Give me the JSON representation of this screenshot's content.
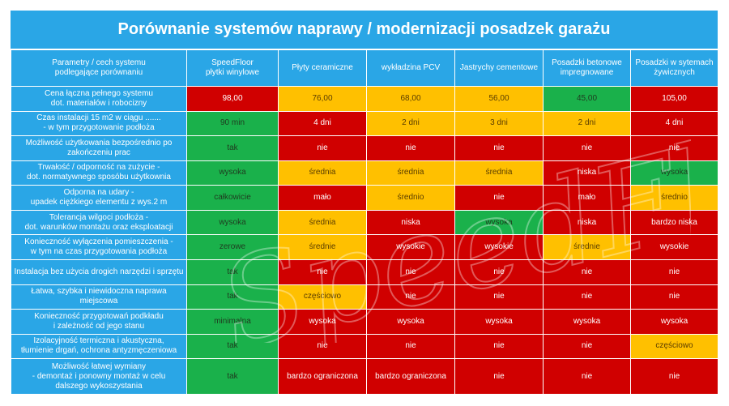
{
  "title": "Porównanie systemów naprawy / modernizacji posadzek garażu",
  "header": {
    "param_label": "Parametry / cech systemu\npodlegające porównaniu",
    "columns": [
      "SpeedFloor\npłytki winylowe",
      "Płyty ceramiczne",
      "wykładzina PCV",
      "Jastrychy cementowe",
      "Posadzki betonowe\nimpregnowane",
      "Posadzki w sytemach\nżywicznych"
    ]
  },
  "rows": [
    {
      "param": "Cena łączna pełnego systemu\ndot. materiałów i robocizny",
      "cells": [
        {
          "v": "98,00",
          "c": "R"
        },
        {
          "v": "76,00",
          "c": "Y"
        },
        {
          "v": "68,00",
          "c": "Y"
        },
        {
          "v": "56,00",
          "c": "Y"
        },
        {
          "v": "45,00",
          "c": "G"
        },
        {
          "v": "105,00",
          "c": "R"
        }
      ]
    },
    {
      "param": "Czas instalacji 15 m2 w ciągu  .......\n- w tym przygotowanie podłoża",
      "cells": [
        {
          "v": "90 min",
          "c": "G"
        },
        {
          "v": "4  dni",
          "c": "R"
        },
        {
          "v": "2 dni",
          "c": "Y"
        },
        {
          "v": "3 dni",
          "c": "Y"
        },
        {
          "v": "2 dni",
          "c": "Y"
        },
        {
          "v": "4  dni",
          "c": "R"
        }
      ]
    },
    {
      "param": "Możliwość użytkowania bezpośrednio po\nzakończeniu prac",
      "cells": [
        {
          "v": "tak",
          "c": "G"
        },
        {
          "v": "nie",
          "c": "R"
        },
        {
          "v": "nie",
          "c": "R"
        },
        {
          "v": "nie",
          "c": "R"
        },
        {
          "v": "nie",
          "c": "R"
        },
        {
          "v": "nie",
          "c": "R"
        }
      ]
    },
    {
      "param": "Trwałość / odporność  na zużycie -\ndot. normatywnego sposóbu użytkownia",
      "cells": [
        {
          "v": "wysoka",
          "c": "G"
        },
        {
          "v": "średnia",
          "c": "Y"
        },
        {
          "v": "średnia",
          "c": "Y"
        },
        {
          "v": "średnia",
          "c": "Y"
        },
        {
          "v": "niska",
          "c": "R"
        },
        {
          "v": "wysoka",
          "c": "G"
        }
      ]
    },
    {
      "param": "Odporna na udary  -\nupadek ciężkiego elementu z wys.2 m",
      "cells": [
        {
          "v": "całkowicie",
          "c": "G"
        },
        {
          "v": "mało",
          "c": "R"
        },
        {
          "v": "średnio",
          "c": "Y"
        },
        {
          "v": "nie",
          "c": "R"
        },
        {
          "v": "mało",
          "c": "R"
        },
        {
          "v": "średnio",
          "c": "Y"
        }
      ]
    },
    {
      "param": "Tolerancja wilgoci podłoża  -\ndot. warunków montażu oraz eksploatacji",
      "cells": [
        {
          "v": "wysoka",
          "c": "G"
        },
        {
          "v": "średnia",
          "c": "Y"
        },
        {
          "v": "niska",
          "c": "R"
        },
        {
          "v": "wysoka",
          "c": "G"
        },
        {
          "v": "niska",
          "c": "R"
        },
        {
          "v": "bardzo niska",
          "c": "R"
        }
      ]
    },
    {
      "param": "Konieczność wyłączenia pomieszczenia  -\nw tym na czas  przygotowania podłoża",
      "cells": [
        {
          "v": "zerowe",
          "c": "G"
        },
        {
          "v": "średnie",
          "c": "Y"
        },
        {
          "v": "wysokie",
          "c": "R"
        },
        {
          "v": "wysokie",
          "c": "R"
        },
        {
          "v": "średnie",
          "c": "Y"
        },
        {
          "v": "wysokie",
          "c": "R"
        }
      ]
    },
    {
      "param": "Instalacja bez użycia drogich narzędzi i sprzętu",
      "cells": [
        {
          "v": "tak",
          "c": "G"
        },
        {
          "v": "nie",
          "c": "R"
        },
        {
          "v": "nie",
          "c": "R"
        },
        {
          "v": "nie",
          "c": "R"
        },
        {
          "v": "nie",
          "c": "R"
        },
        {
          "v": "nie",
          "c": "R"
        }
      ]
    },
    {
      "param": "Łatwa, szybka i niewidoczna naprawa\nmiejscowa",
      "cells": [
        {
          "v": "tak",
          "c": "G"
        },
        {
          "v": "częściowo",
          "c": "Y"
        },
        {
          "v": "nie",
          "c": "R"
        },
        {
          "v": "nie",
          "c": "R"
        },
        {
          "v": "nie",
          "c": "R"
        },
        {
          "v": "nie",
          "c": "R"
        }
      ]
    },
    {
      "param": "Konieczność przygotowań podkładu\ni zależność od jego stanu",
      "cells": [
        {
          "v": "minimalna",
          "c": "G"
        },
        {
          "v": "wysoka",
          "c": "R"
        },
        {
          "v": "wysoka",
          "c": "R"
        },
        {
          "v": "wysoka",
          "c": "R"
        },
        {
          "v": "wysoka",
          "c": "R"
        },
        {
          "v": "wysoka",
          "c": "R"
        }
      ]
    },
    {
      "param": "Izolacyjność termiczna i akustyczna,\ntłumienie drgań, ochrona antyzmęczeniowa",
      "cells": [
        {
          "v": "tak",
          "c": "G"
        },
        {
          "v": "nie",
          "c": "R"
        },
        {
          "v": "nie",
          "c": "R"
        },
        {
          "v": "nie",
          "c": "R"
        },
        {
          "v": "nie",
          "c": "R"
        },
        {
          "v": "częściowo",
          "c": "Y"
        }
      ]
    },
    {
      "param": "Możliwość  łatwej wymiany\n- demontaż i ponowny montaż w celu\ndalszego wykoszystania",
      "cells": [
        {
          "v": "tak",
          "c": "G"
        },
        {
          "v": "bardzo ograniczona",
          "c": "R"
        },
        {
          "v": "bardzo ograniczona",
          "c": "R"
        },
        {
          "v": "nie",
          "c": "R"
        },
        {
          "v": "nie",
          "c": "R"
        },
        {
          "v": "nie",
          "c": "R"
        }
      ]
    }
  ],
  "watermark": "SpeedFloor",
  "colors": {
    "header_blue": "#2aa6e6",
    "good_green": "#1ab14b",
    "medium_yellow": "#ffc000",
    "bad_red": "#d00000"
  }
}
